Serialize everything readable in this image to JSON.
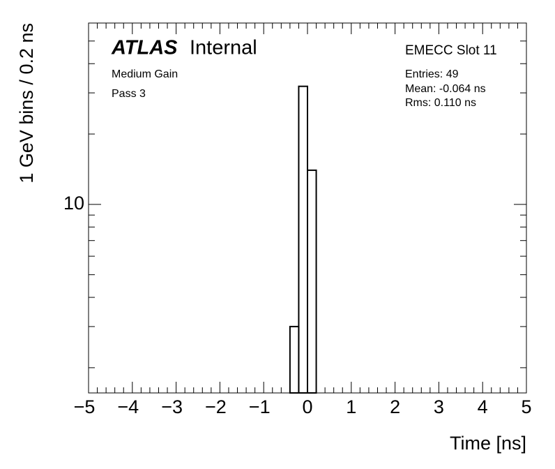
{
  "chart_data": {
    "type": "histogram",
    "title": "ATLAS",
    "subtitle": "Internal",
    "annotations": [
      "Medium Gain",
      "Pass 3"
    ],
    "stats_title": "EMECC Slot 11",
    "stats": [
      "Entries: 49",
      "Mean: -0.064 ns",
      "Rms: 0.110 ns"
    ],
    "x_label": "Time [ns]",
    "y_label": "1 GeV bins / 0.2 ns",
    "bins": [
      -0.4,
      -0.2,
      0,
      0.2
    ],
    "values": [
      3,
      32,
      14
    ],
    "color": "#000000",
    "xlim": [
      -5,
      5
    ],
    "xticks": [
      {
        "value": -5,
        "label": "−5"
      },
      {
        "value": -4,
        "label": "−4"
      },
      {
        "value": -3,
        "label": "−3"
      },
      {
        "value": -2,
        "label": "−2"
      },
      {
        "value": -1,
        "label": "−1"
      },
      0,
      1,
      2,
      3,
      4,
      5
    ],
    "ylim": [
      1.56,
      59.7
    ],
    "log_y": true,
    "yticks": [
      10
    ],
    "yminorticks": [
      2,
      3,
      4,
      5,
      6,
      7,
      8,
      9,
      20,
      30,
      40,
      50
    ]
  }
}
